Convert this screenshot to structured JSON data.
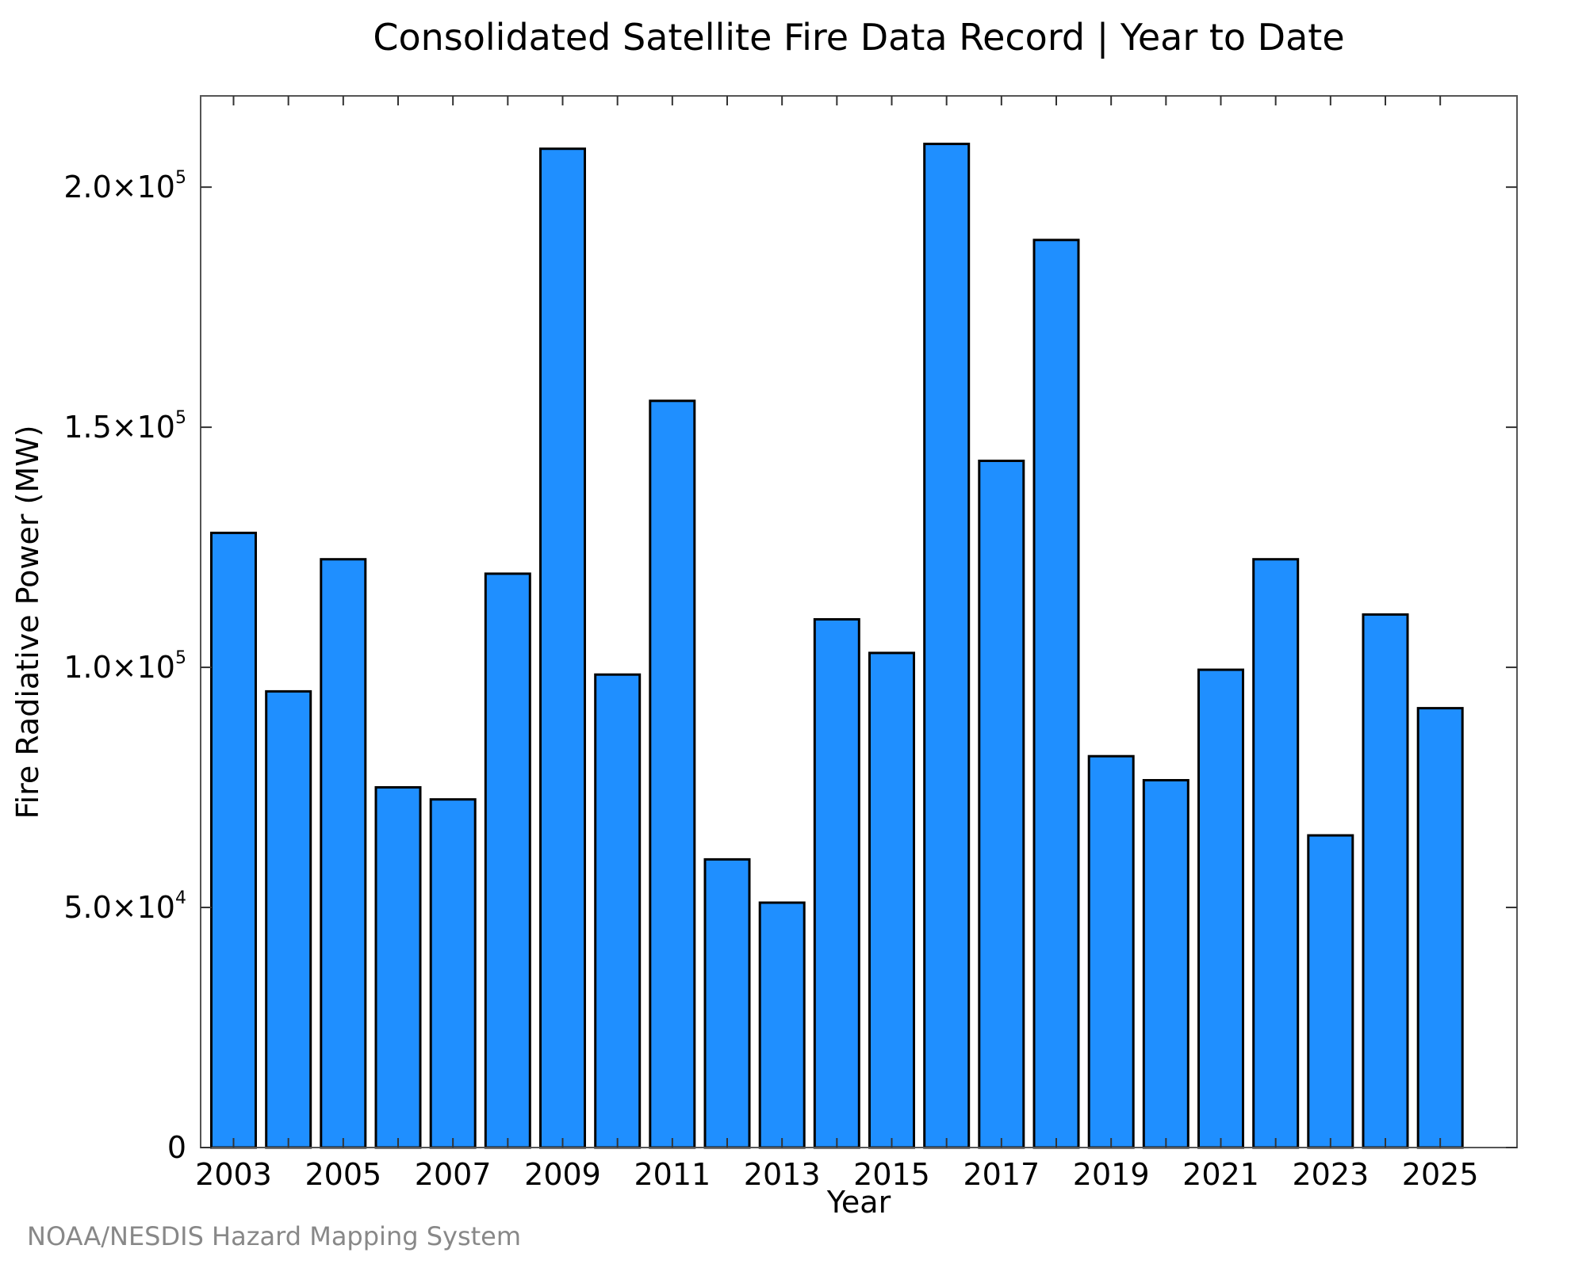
{
  "chart_data": {
    "type": "bar",
    "title": "Consolidated Satellite Fire Data Record | Year to Date",
    "xlabel": "Year",
    "ylabel": "Fire Radiative Power (MW)",
    "categories": [
      "2003",
      "2004",
      "2005",
      "2006",
      "2007",
      "2008",
      "2009",
      "2010",
      "2011",
      "2012",
      "2013",
      "2014",
      "2015",
      "2016",
      "2017",
      "2018",
      "2019",
      "2020",
      "2021",
      "2022",
      "2023",
      "2024",
      "2025"
    ],
    "values": [
      128000,
      95000,
      122500,
      75000,
      72500,
      119500,
      208000,
      98500,
      155500,
      60000,
      51000,
      110000,
      103000,
      209000,
      143000,
      189000,
      81500,
      76500,
      99500,
      122500,
      65000,
      111000,
      91500
    ],
    "xticks": [
      "2003",
      "2005",
      "2007",
      "2009",
      "2011",
      "2013",
      "2015",
      "2017",
      "2019",
      "2021",
      "2023",
      "2025"
    ],
    "yticks": [
      {
        "value": 0,
        "mantissa": "0",
        "exp": ""
      },
      {
        "value": 50000,
        "mantissa": "5.0×10",
        "exp": "4"
      },
      {
        "value": 100000,
        "mantissa": "1.0×10",
        "exp": "5"
      },
      {
        "value": 150000,
        "mantissa": "1.5×10",
        "exp": "5"
      },
      {
        "value": 200000,
        "mantissa": "2.0×10",
        "exp": "5"
      }
    ],
    "ylim": [
      0,
      219000
    ],
    "xlim": [
      2002.4,
      2026.4
    ],
    "bar_color": "#1f8fff",
    "grid": false,
    "legend": "none"
  },
  "credit": "NOAA/NESDIS Hazard Mapping System"
}
